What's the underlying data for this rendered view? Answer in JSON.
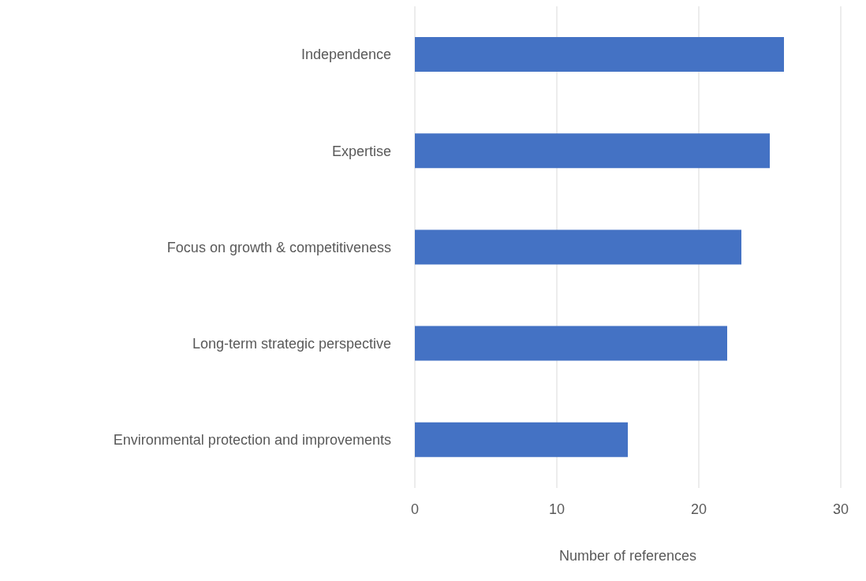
{
  "chart_data": {
    "type": "bar",
    "orientation": "horizontal",
    "xlabel": "Number of references",
    "categories": [
      "Independence",
      "Expertise",
      "Focus on growth & competitiveness",
      "Long-term strategic perspective",
      "Environmental protection and improvements"
    ],
    "values": [
      26,
      25,
      23,
      22,
      15
    ],
    "color": "#4472c4",
    "xlim": [
      0,
      30
    ],
    "xticks": [
      0,
      10,
      20,
      30
    ],
    "grid": "x",
    "legend": false
  }
}
